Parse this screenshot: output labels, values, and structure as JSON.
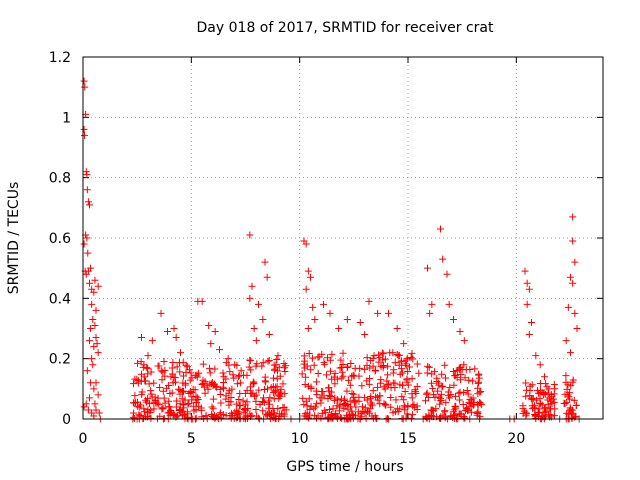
{
  "chart_data": {
    "type": "scatter",
    "title": "Day 018 of 2017, SRMTID for receiver crat",
    "xlabel": "GPS time / hours",
    "ylabel": "SRMTID / TECUs",
    "xlim": [
      0,
      24
    ],
    "ylim": [
      0,
      1.2
    ],
    "x_ticks": [
      0,
      5,
      10,
      15,
      20
    ],
    "x_tick_labels": [
      "0",
      "5",
      "10",
      "15",
      "20"
    ],
    "y_ticks": [
      0,
      0.2,
      0.4,
      0.6,
      0.8,
      1.0,
      1.2
    ],
    "y_tick_labels": [
      "0",
      "0.2",
      "0.4",
      "0.6",
      "0.8",
      "1",
      "1.2"
    ],
    "grid": true,
    "marker": "+",
    "series": [
      {
        "name": "SRMTID",
        "color": "#ff0000",
        "points": [
          [
            0.05,
            1.12
          ],
          [
            0.08,
            1.1
          ],
          [
            0.12,
            1.01
          ],
          [
            0.05,
            0.96
          ],
          [
            0.07,
            0.94
          ],
          [
            0.15,
            0.82
          ],
          [
            0.18,
            0.81
          ],
          [
            0.2,
            0.76
          ],
          [
            0.25,
            0.72
          ],
          [
            0.3,
            0.71
          ],
          [
            0.05,
            0.58
          ],
          [
            0.12,
            0.61
          ],
          [
            0.18,
            0.6
          ],
          [
            0.22,
            0.55
          ],
          [
            0.1,
            0.49
          ],
          [
            0.15,
            0.48
          ],
          [
            0.25,
            0.49
          ],
          [
            0.35,
            0.5
          ],
          [
            0.3,
            0.45
          ],
          [
            0.4,
            0.43
          ],
          [
            0.5,
            0.42
          ],
          [
            0.55,
            0.46
          ],
          [
            0.7,
            0.44
          ],
          [
            0.4,
            0.38
          ],
          [
            0.6,
            0.36
          ],
          [
            0.45,
            0.33
          ],
          [
            0.35,
            0.3
          ],
          [
            0.55,
            0.31
          ],
          [
            0.6,
            0.27
          ],
          [
            0.65,
            0.25
          ],
          [
            0.3,
            0.26
          ],
          [
            0.5,
            0.24
          ],
          [
            0.7,
            0.22
          ],
          [
            0.4,
            0.2
          ],
          [
            0.45,
            0.18
          ],
          [
            0.2,
            0.16
          ],
          [
            0.35,
            0.12
          ],
          [
            0.5,
            0.1
          ],
          [
            0.6,
            0.12
          ],
          [
            0.7,
            0.08
          ],
          [
            0.15,
            0.05
          ],
          [
            0.25,
            0.03
          ],
          [
            0.4,
            0.02
          ],
          [
            0.5,
            0.01
          ],
          [
            0.75,
            0.02
          ],
          [
            0.05,
            0.04
          ],
          [
            0.8,
            0.0
          ],
          [
            0.6,
            0.03
          ],
          [
            0.3,
            0.07
          ],
          [
            0.55,
            0.05
          ],
          [
            7.7,
            0.61
          ],
          [
            7.8,
            0.44
          ],
          [
            7.7,
            0.4
          ],
          [
            8.1,
            0.38
          ],
          [
            8.4,
            0.52
          ],
          [
            8.5,
            0.47
          ],
          [
            8.3,
            0.33
          ],
          [
            7.9,
            0.3
          ],
          [
            8.0,
            0.26
          ],
          [
            8.6,
            0.28
          ],
          [
            10.2,
            0.59
          ],
          [
            10.3,
            0.58
          ],
          [
            10.4,
            0.49
          ],
          [
            10.5,
            0.47
          ],
          [
            10.3,
            0.43
          ],
          [
            10.6,
            0.37
          ],
          [
            10.7,
            0.33
          ],
          [
            10.4,
            0.3
          ],
          [
            11.1,
            0.38
          ],
          [
            11.4,
            0.35
          ],
          [
            16.5,
            0.63
          ],
          [
            16.6,
            0.53
          ],
          [
            16.8,
            0.48
          ],
          [
            15.9,
            0.5
          ],
          [
            16.1,
            0.38
          ],
          [
            16.0,
            0.35
          ],
          [
            16.9,
            0.38
          ],
          [
            17.1,
            0.33
          ],
          [
            17.4,
            0.29
          ],
          [
            17.6,
            0.26
          ],
          [
            20.4,
            0.49
          ],
          [
            20.5,
            0.45
          ],
          [
            20.6,
            0.43
          ],
          [
            20.5,
            0.38
          ],
          [
            20.7,
            0.32
          ],
          [
            20.6,
            0.28
          ],
          [
            20.9,
            0.21
          ],
          [
            21.1,
            0.18
          ],
          [
            21.3,
            0.14
          ],
          [
            21.5,
            0.1
          ],
          [
            22.6,
            0.67
          ],
          [
            22.6,
            0.59
          ],
          [
            22.7,
            0.52
          ],
          [
            22.5,
            0.47
          ],
          [
            22.6,
            0.45
          ],
          [
            22.4,
            0.37
          ],
          [
            22.7,
            0.35
          ],
          [
            22.3,
            0.26
          ],
          [
            22.5,
            0.22
          ],
          [
            22.8,
            0.3
          ],
          [
            13.2,
            0.39
          ],
          [
            13.6,
            0.35
          ],
          [
            14.1,
            0.35
          ],
          [
            14.5,
            0.3
          ],
          [
            12.8,
            0.32
          ],
          [
            13.0,
            0.28
          ],
          [
            12.2,
            0.33
          ],
          [
            11.8,
            0.3
          ],
          [
            14.8,
            0.25
          ],
          [
            14.3,
            0.22
          ],
          [
            3.6,
            0.35
          ],
          [
            4.2,
            0.3
          ],
          [
            3.9,
            0.29
          ],
          [
            4.3,
            0.27
          ],
          [
            3.2,
            0.26
          ],
          [
            2.7,
            0.27
          ],
          [
            3.0,
            0.21
          ],
          [
            4.5,
            0.22
          ],
          [
            5.3,
            0.39
          ],
          [
            5.5,
            0.39
          ],
          [
            5.8,
            0.31
          ],
          [
            6.1,
            0.29
          ],
          [
            5.9,
            0.25
          ],
          [
            6.3,
            0.23
          ],
          [
            6.7,
            0.2
          ],
          [
            9.0,
            0.21
          ],
          [
            9.3,
            0.17
          ],
          [
            7.0,
            0.18
          ],
          [
            7.3,
            0.16
          ],
          [
            6.5,
            0.14
          ],
          [
            2.3,
            0.0
          ],
          [
            2.5,
            0.0
          ],
          [
            2.6,
            0.0
          ],
          [
            5.0,
            0.0
          ],
          [
            5.2,
            0.0
          ],
          [
            9.6,
            0.0
          ],
          [
            10.0,
            0.0
          ],
          [
            15.7,
            0.0
          ],
          [
            18.3,
            0.0
          ],
          [
            19.7,
            0.0
          ],
          [
            19.9,
            0.0
          ],
          [
            22.0,
            0.0
          ],
          [
            22.3,
            0.0
          ],
          [
            22.9,
            0.0
          ]
        ],
        "dense_ranges": [
          {
            "x_start": 2.3,
            "x_end": 9.4,
            "y_max": 0.2
          },
          {
            "x_start": 10.1,
            "x_end": 15.5,
            "y_max": 0.22
          },
          {
            "x_start": 15.8,
            "x_end": 18.4,
            "y_max": 0.18
          },
          {
            "x_start": 20.3,
            "x_end": 21.8,
            "y_max": 0.12
          },
          {
            "x_start": 22.2,
            "x_end": 22.8,
            "y_max": 0.15
          }
        ]
      }
    ]
  }
}
